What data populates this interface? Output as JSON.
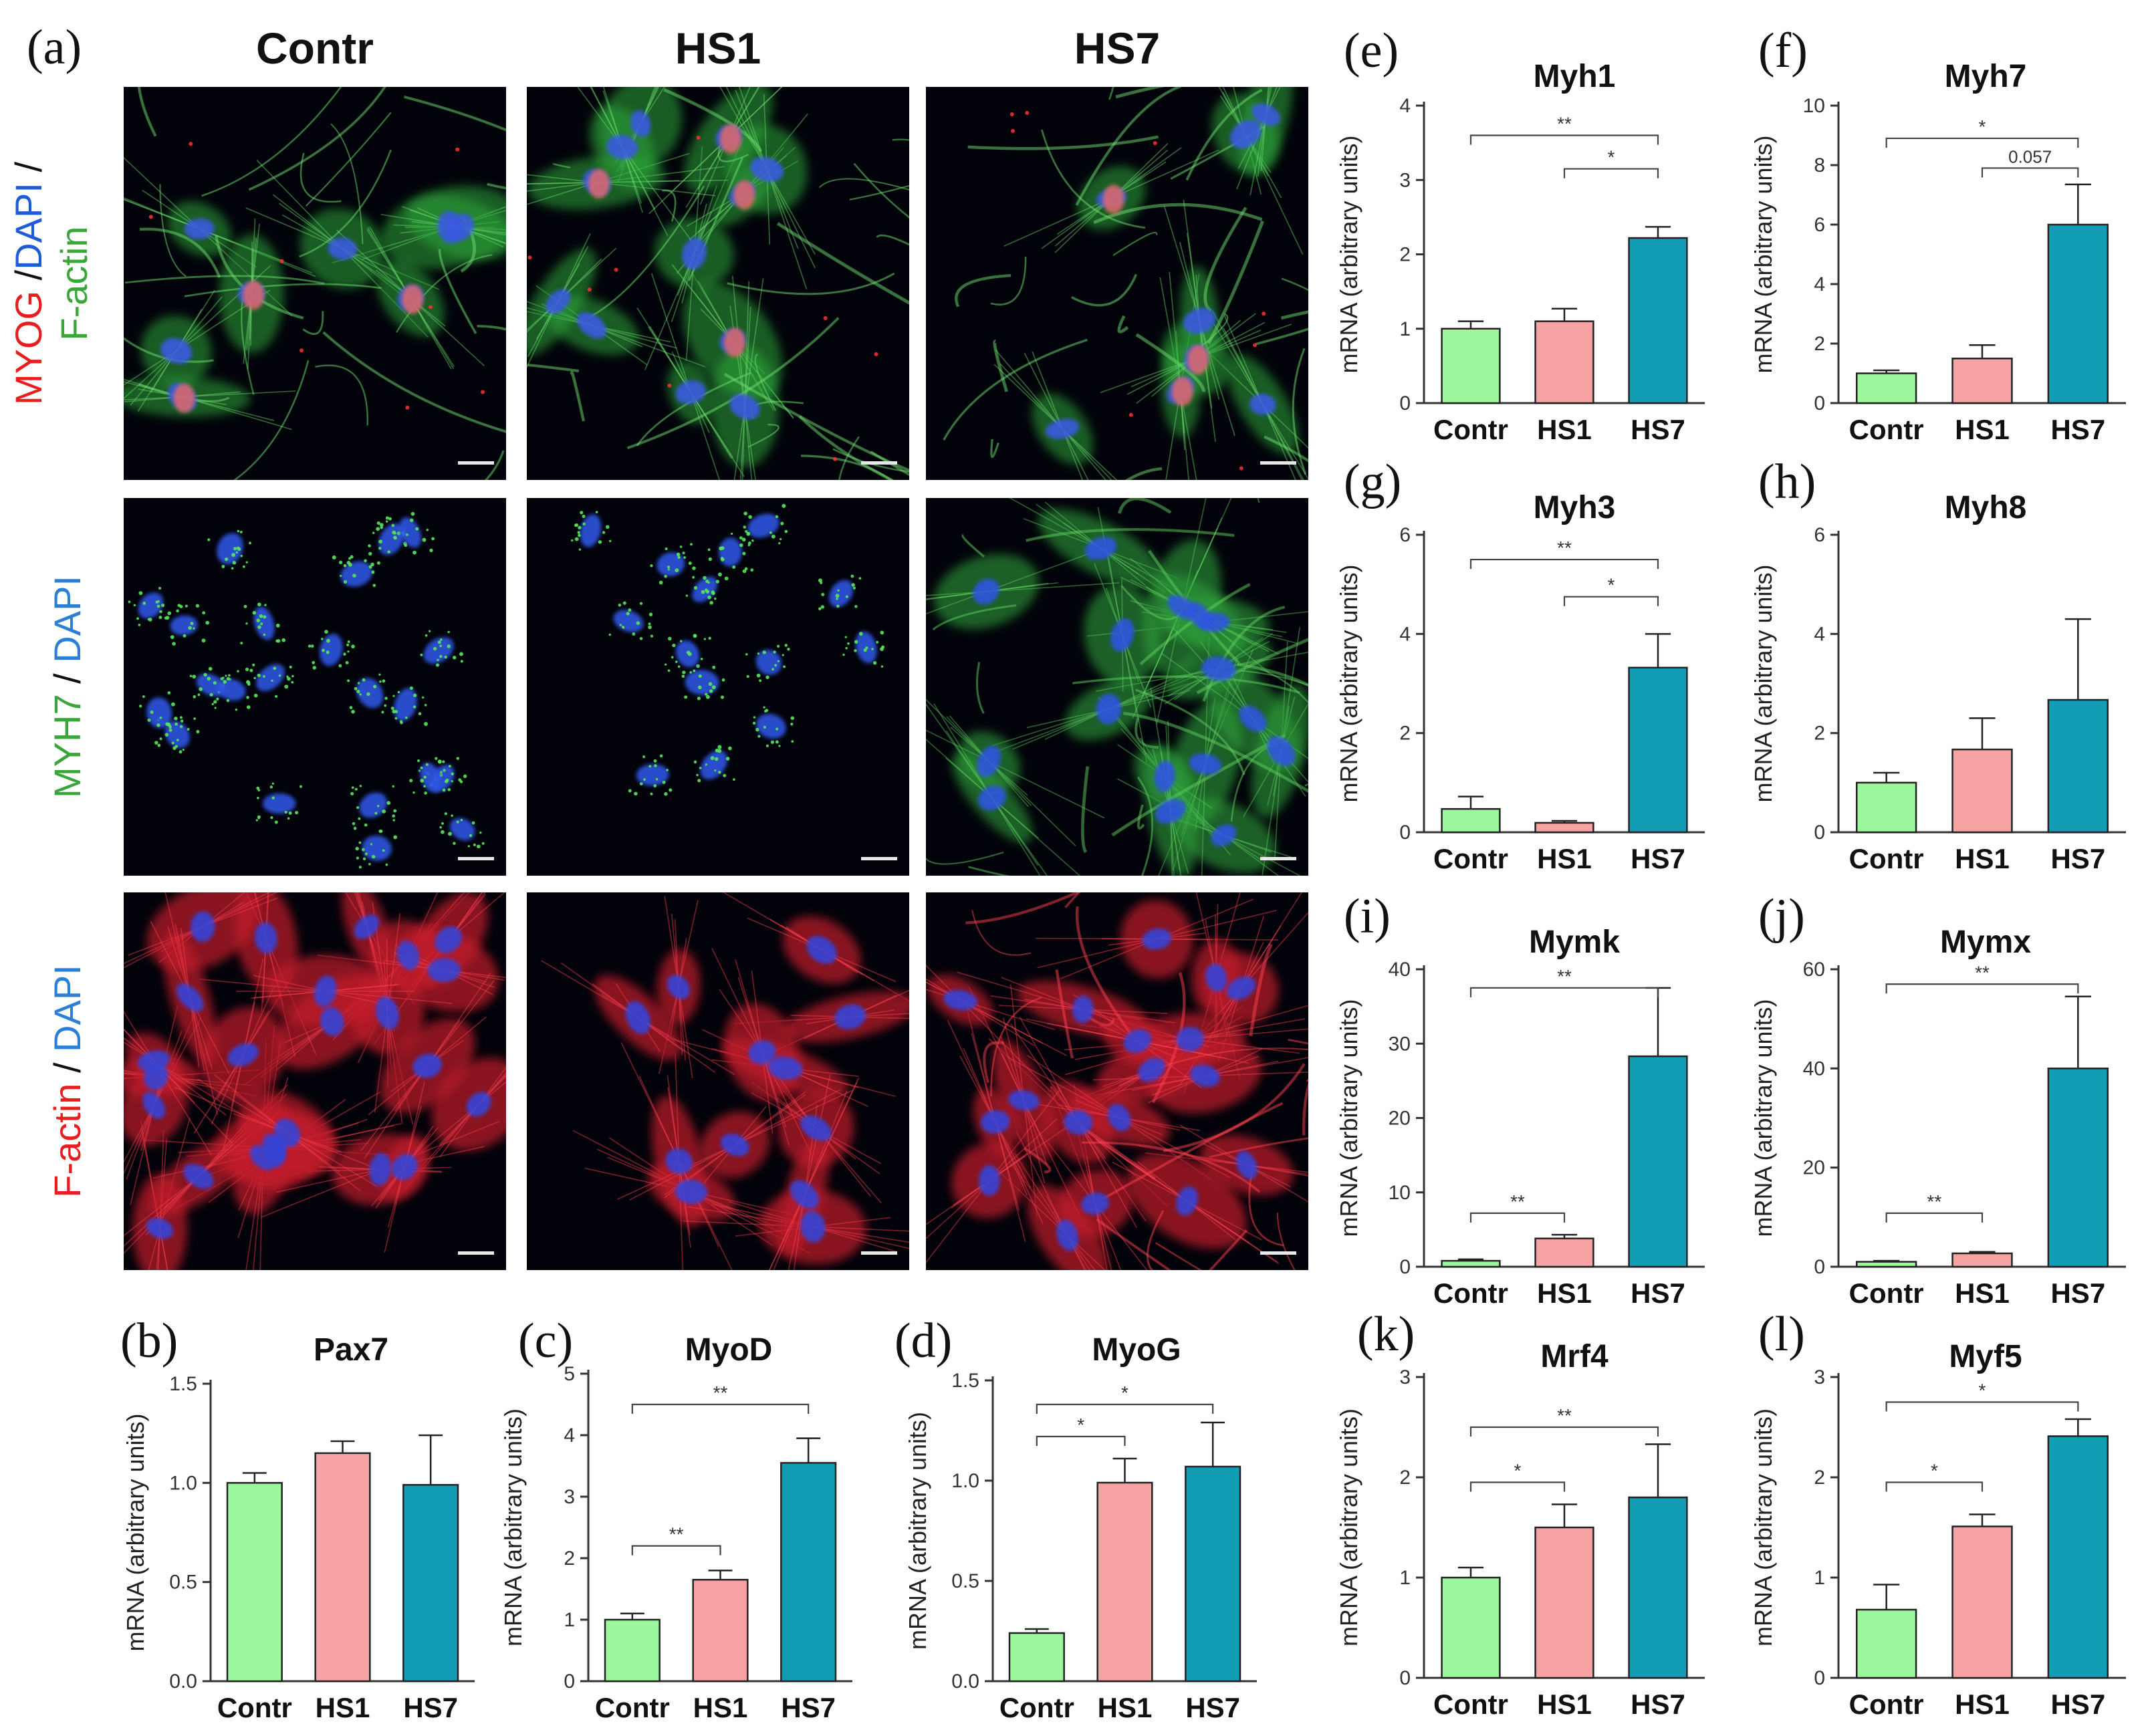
{
  "figure": {
    "panel_a": {
      "label": "(a)",
      "columns": [
        "Contr",
        "HS1",
        "HS7"
      ],
      "rows": [
        {
          "parts": [
            {
              "text": "MYOG",
              "color": "#e81d1d"
            },
            {
              "text": " /",
              "color": "#111111"
            },
            {
              "text": "DAPI",
              "color": "#1f5bd6"
            },
            {
              "text": " /",
              "color": "#111111"
            }
          ],
          "line2": {
            "text": "F-actin",
            "color": "#3aa63a"
          },
          "stain": "myog"
        },
        {
          "parts": [
            {
              "text": "MYH7",
              "color": "#3aa63a"
            },
            {
              "text": " / ",
              "color": "#111111"
            },
            {
              "text": "DAPI",
              "color": "#2c7fd6"
            }
          ],
          "stain": "myh7"
        },
        {
          "parts": [
            {
              "text": "F-actin",
              "color": "#e81d1d"
            },
            {
              "text": " / ",
              "color": "#111111"
            },
            {
              "text": "DAPI",
              "color": "#2c7fd6"
            }
          ],
          "stain": "factin"
        }
      ]
    },
    "colors": {
      "Contr": "#9cf79c",
      "HS1": "#f7a3a3",
      "HS7": "#129db5",
      "axis": "#333333"
    }
  },
  "chart_data": [
    {
      "panel": "(b)",
      "type": "bar",
      "title": "Pax7",
      "ylabel": "mRNA (arbitrary units)",
      "categories": [
        "Contr",
        "HS1",
        "HS7"
      ],
      "values": [
        1.0,
        1.15,
        0.99
      ],
      "errors": [
        0.05,
        0.06,
        0.25
      ],
      "ylim": [
        0,
        1.5
      ],
      "yticks": [
        "0.0",
        "0.5",
        "1.0",
        "1.5"
      ],
      "sig": []
    },
    {
      "panel": "(c)",
      "type": "bar",
      "title": "MyoD",
      "ylabel": "mRNA (arbitrary units)",
      "categories": [
        "Contr",
        "HS1",
        "HS7"
      ],
      "values": [
        1.0,
        1.65,
        3.55
      ],
      "errors": [
        0.1,
        0.15,
        0.4
      ],
      "ylim": [
        0,
        5
      ],
      "yticks": [
        "0",
        "1",
        "2",
        "3",
        "4",
        "5"
      ],
      "sig": [
        {
          "from": 0,
          "to": 2,
          "level": 4.5,
          "text": "**"
        },
        {
          "from": 0,
          "to": 1,
          "level": 2.2,
          "text": "**"
        }
      ]
    },
    {
      "panel": "(d)",
      "type": "bar",
      "title": "MyoG",
      "ylabel": "mRNA (arbitrary units)",
      "categories": [
        "Contr",
        "HS1",
        "HS7"
      ],
      "values": [
        0.24,
        0.99,
        1.07
      ],
      "errors": [
        0.02,
        0.12,
        0.22
      ],
      "ylim": [
        0,
        1.5
      ],
      "yticks": [
        "0.0",
        "0.5",
        "1.0",
        "1.5"
      ],
      "sig": [
        {
          "from": 0,
          "to": 2,
          "level": 1.38,
          "text": "*"
        },
        {
          "from": 0,
          "to": 1,
          "level": 1.22,
          "text": "*"
        }
      ]
    },
    {
      "panel": "(e)",
      "type": "bar",
      "title": "Myh1",
      "ylabel": "mRNA (arbitrary units)",
      "categories": [
        "Contr",
        "HS1",
        "HS7"
      ],
      "values": [
        1.0,
        1.1,
        2.22
      ],
      "errors": [
        0.1,
        0.17,
        0.15
      ],
      "ylim": [
        0,
        4
      ],
      "yticks": [
        "0",
        "1",
        "2",
        "3",
        "4"
      ],
      "sig": [
        {
          "from": 0,
          "to": 2,
          "level": 3.6,
          "text": "**"
        },
        {
          "from": 1,
          "to": 2,
          "level": 3.15,
          "text": "*"
        }
      ]
    },
    {
      "panel": "(f)",
      "type": "bar",
      "title": "Myh7",
      "ylabel": "mRNA (arbitrary units)",
      "categories": [
        "Contr",
        "HS1",
        "HS7"
      ],
      "values": [
        1.0,
        1.5,
        6.0
      ],
      "errors": [
        0.1,
        0.45,
        1.35
      ],
      "ylim": [
        0,
        10
      ],
      "yticks": [
        "0",
        "2",
        "4",
        "6",
        "8",
        "10"
      ],
      "sig": [
        {
          "from": 0,
          "to": 2,
          "level": 8.9,
          "text": "*"
        },
        {
          "from": 1,
          "to": 2,
          "level": 7.9,
          "text": "0.057"
        }
      ]
    },
    {
      "panel": "(g)",
      "type": "bar",
      "title": "Myh3",
      "ylabel": "mRNA (arbitrary units)",
      "categories": [
        "Contr",
        "HS1",
        "HS7"
      ],
      "values": [
        0.47,
        0.19,
        3.32
      ],
      "errors": [
        0.25,
        0.04,
        0.68
      ],
      "ylim": [
        0,
        6
      ],
      "yticks": [
        "0",
        "2",
        "4",
        "6"
      ],
      "sig": [
        {
          "from": 0,
          "to": 2,
          "level": 5.5,
          "text": "**"
        },
        {
          "from": 1,
          "to": 2,
          "level": 4.75,
          "text": "*"
        }
      ]
    },
    {
      "panel": "(h)",
      "type": "bar",
      "title": "Myh8",
      "ylabel": "mRNA (arbitrary units)",
      "categories": [
        "Contr",
        "HS1",
        "HS7"
      ],
      "values": [
        1.0,
        1.67,
        2.67
      ],
      "errors": [
        0.2,
        0.63,
        1.63
      ],
      "ylim": [
        0,
        6
      ],
      "yticks": [
        "0",
        "2",
        "4",
        "6"
      ],
      "sig": []
    },
    {
      "panel": "(i)",
      "type": "bar",
      "title": "Mymk",
      "ylabel": "mRNA (arbitrary units)",
      "categories": [
        "Contr",
        "HS1",
        "HS7"
      ],
      "values": [
        0.8,
        3.8,
        28.3
      ],
      "errors": [
        0.2,
        0.5,
        9.2
      ],
      "ylim": [
        0,
        40
      ],
      "yticks": [
        "0",
        "10",
        "20",
        "30",
        "40"
      ],
      "sig": [
        {
          "from": 0,
          "to": 2,
          "level": 37.5,
          "text": "**"
        },
        {
          "from": 0,
          "to": 1,
          "level": 7.2,
          "text": "**"
        }
      ]
    },
    {
      "panel": "(j)",
      "type": "bar",
      "title": "Mymx",
      "ylabel": "mRNA (arbitrary units)",
      "categories": [
        "Contr",
        "HS1",
        "HS7"
      ],
      "values": [
        1.0,
        2.7,
        40.0
      ],
      "errors": [
        0.2,
        0.3,
        14.5
      ],
      "ylim": [
        0,
        60
      ],
      "yticks": [
        "0",
        "20",
        "40",
        "60"
      ],
      "sig": [
        {
          "from": 0,
          "to": 2,
          "level": 57.0,
          "text": "**"
        },
        {
          "from": 0,
          "to": 1,
          "level": 10.8,
          "text": "**"
        }
      ]
    },
    {
      "panel": "(k)",
      "type": "bar",
      "title": "Mrf4",
      "ylabel": "mRNA (arbitrary units)",
      "categories": [
        "Contr",
        "HS1",
        "HS7"
      ],
      "values": [
        1.0,
        1.5,
        1.8
      ],
      "errors": [
        0.1,
        0.23,
        0.53
      ],
      "ylim": [
        0,
        3
      ],
      "yticks": [
        "0",
        "1",
        "2",
        "3"
      ],
      "sig": [
        {
          "from": 0,
          "to": 2,
          "level": 2.5,
          "text": "**"
        },
        {
          "from": 0,
          "to": 1,
          "level": 1.95,
          "text": "*"
        }
      ]
    },
    {
      "panel": "(l)",
      "type": "bar",
      "title": "Myf5",
      "ylabel": "mRNA (arbitrary units)",
      "categories": [
        "Contr",
        "HS1",
        "HS7"
      ],
      "values": [
        0.68,
        1.51,
        2.41
      ],
      "errors": [
        0.25,
        0.12,
        0.17
      ],
      "ylim": [
        0,
        3
      ],
      "yticks": [
        "0",
        "1",
        "2",
        "3"
      ],
      "sig": [
        {
          "from": 0,
          "to": 2,
          "level": 2.75,
          "text": "*"
        },
        {
          "from": 0,
          "to": 1,
          "level": 1.95,
          "text": "*"
        }
      ]
    }
  ]
}
